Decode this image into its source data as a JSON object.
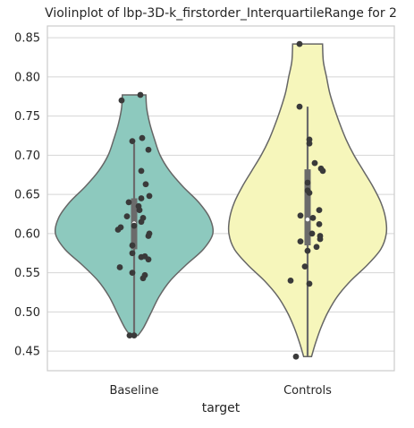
{
  "chart_data": {
    "type": "violin",
    "title": "Violinplot of lbp-3D-k_firstorder_InterquartileRange for 2",
    "xlabel": "target",
    "ylabel": "",
    "ylim": [
      0.425,
      0.865
    ],
    "yticks": [
      "0.45",
      "0.50",
      "0.55",
      "0.60",
      "0.65",
      "0.70",
      "0.75",
      "0.80",
      "0.85"
    ],
    "ytick_values": [
      0.45,
      0.5,
      0.55,
      0.6,
      0.65,
      0.7,
      0.75,
      0.8,
      0.85
    ],
    "categories": [
      "Baseline",
      "Controls"
    ],
    "grid": "horizontal",
    "series": [
      {
        "category": "Baseline",
        "color": "#8dc9be",
        "min": 0.47,
        "q1": 0.58,
        "median": 0.613,
        "q3": 0.645,
        "max": 0.777,
        "whisker_low": 0.47,
        "whisker_high": 0.715,
        "density": [
          [
            0.47,
            0.05
          ],
          [
            0.48,
            0.12
          ],
          [
            0.5,
            0.22
          ],
          [
            0.52,
            0.32
          ],
          [
            0.54,
            0.46
          ],
          [
            0.56,
            0.66
          ],
          [
            0.58,
            0.88
          ],
          [
            0.6,
            1.0
          ],
          [
            0.62,
            0.96
          ],
          [
            0.64,
            0.82
          ],
          [
            0.66,
            0.62
          ],
          [
            0.68,
            0.45
          ],
          [
            0.7,
            0.33
          ],
          [
            0.72,
            0.26
          ],
          [
            0.74,
            0.2
          ],
          [
            0.76,
            0.16
          ],
          [
            0.777,
            0.15
          ]
        ],
        "points": [
          {
            "y": 0.47,
            "j": -0.05
          },
          {
            "y": 0.47,
            "j": 0.0
          },
          {
            "y": 0.543,
            "j": 0.1
          },
          {
            "y": 0.547,
            "j": 0.12
          },
          {
            "y": 0.55,
            "j": -0.02
          },
          {
            "y": 0.557,
            "j": -0.16
          },
          {
            "y": 0.567,
            "j": 0.16
          },
          {
            "y": 0.57,
            "j": 0.08
          },
          {
            "y": 0.571,
            "j": 0.12
          },
          {
            "y": 0.575,
            "j": -0.02
          },
          {
            "y": 0.585,
            "j": -0.02
          },
          {
            "y": 0.597,
            "j": 0.16
          },
          {
            "y": 0.6,
            "j": 0.17
          },
          {
            "y": 0.605,
            "j": -0.18
          },
          {
            "y": 0.608,
            "j": -0.15
          },
          {
            "y": 0.61,
            "j": 0.0
          },
          {
            "y": 0.615,
            "j": 0.08
          },
          {
            "y": 0.62,
            "j": 0.1
          },
          {
            "y": 0.622,
            "j": -0.08
          },
          {
            "y": 0.63,
            "j": 0.06
          },
          {
            "y": 0.635,
            "j": 0.05
          },
          {
            "y": 0.64,
            "j": -0.06
          },
          {
            "y": 0.645,
            "j": 0.08
          },
          {
            "y": 0.648,
            "j": 0.17
          },
          {
            "y": 0.663,
            "j": 0.13
          },
          {
            "y": 0.68,
            "j": 0.08
          },
          {
            "y": 0.707,
            "j": 0.16
          },
          {
            "y": 0.718,
            "j": -0.02
          },
          {
            "y": 0.722,
            "j": 0.09
          },
          {
            "y": 0.77,
            "j": -0.14
          },
          {
            "y": 0.777,
            "j": 0.07
          }
        ]
      },
      {
        "category": "Controls",
        "color": "#f6f6bb",
        "min": 0.443,
        "q1": 0.585,
        "median": 0.618,
        "q3": 0.682,
        "max": 0.842,
        "whisker_low": 0.443,
        "whisker_high": 0.762,
        "density": [
          [
            0.443,
            0.05
          ],
          [
            0.46,
            0.1
          ],
          [
            0.48,
            0.17
          ],
          [
            0.5,
            0.26
          ],
          [
            0.52,
            0.38
          ],
          [
            0.54,
            0.55
          ],
          [
            0.56,
            0.76
          ],
          [
            0.58,
            0.93
          ],
          [
            0.6,
            1.0
          ],
          [
            0.62,
            0.99
          ],
          [
            0.64,
            0.93
          ],
          [
            0.66,
            0.83
          ],
          [
            0.68,
            0.71
          ],
          [
            0.7,
            0.59
          ],
          [
            0.72,
            0.49
          ],
          [
            0.74,
            0.41
          ],
          [
            0.76,
            0.34
          ],
          [
            0.78,
            0.28
          ],
          [
            0.8,
            0.24
          ],
          [
            0.82,
            0.2
          ],
          [
            0.842,
            0.19
          ]
        ],
        "points": [
          {
            "y": 0.443,
            "j": -0.13
          },
          {
            "y": 0.536,
            "j": 0.02
          },
          {
            "y": 0.54,
            "j": -0.19
          },
          {
            "y": 0.558,
            "j": -0.03
          },
          {
            "y": 0.578,
            "j": 0.0
          },
          {
            "y": 0.583,
            "j": 0.1
          },
          {
            "y": 0.59,
            "j": -0.08
          },
          {
            "y": 0.593,
            "j": 0.14
          },
          {
            "y": 0.597,
            "j": 0.14
          },
          {
            "y": 0.6,
            "j": 0.05
          },
          {
            "y": 0.612,
            "j": 0.13
          },
          {
            "y": 0.62,
            "j": 0.06
          },
          {
            "y": 0.623,
            "j": -0.08
          },
          {
            "y": 0.63,
            "j": 0.13
          },
          {
            "y": 0.652,
            "j": 0.02
          },
          {
            "y": 0.655,
            "j": 0.0
          },
          {
            "y": 0.665,
            "j": 0.0
          },
          {
            "y": 0.68,
            "j": 0.17
          },
          {
            "y": 0.683,
            "j": 0.15
          },
          {
            "y": 0.69,
            "j": 0.08
          },
          {
            "y": 0.715,
            "j": 0.02
          },
          {
            "y": 0.72,
            "j": 0.02
          },
          {
            "y": 0.762,
            "j": -0.09
          },
          {
            "y": 0.842,
            "j": -0.09
          }
        ]
      }
    ]
  }
}
